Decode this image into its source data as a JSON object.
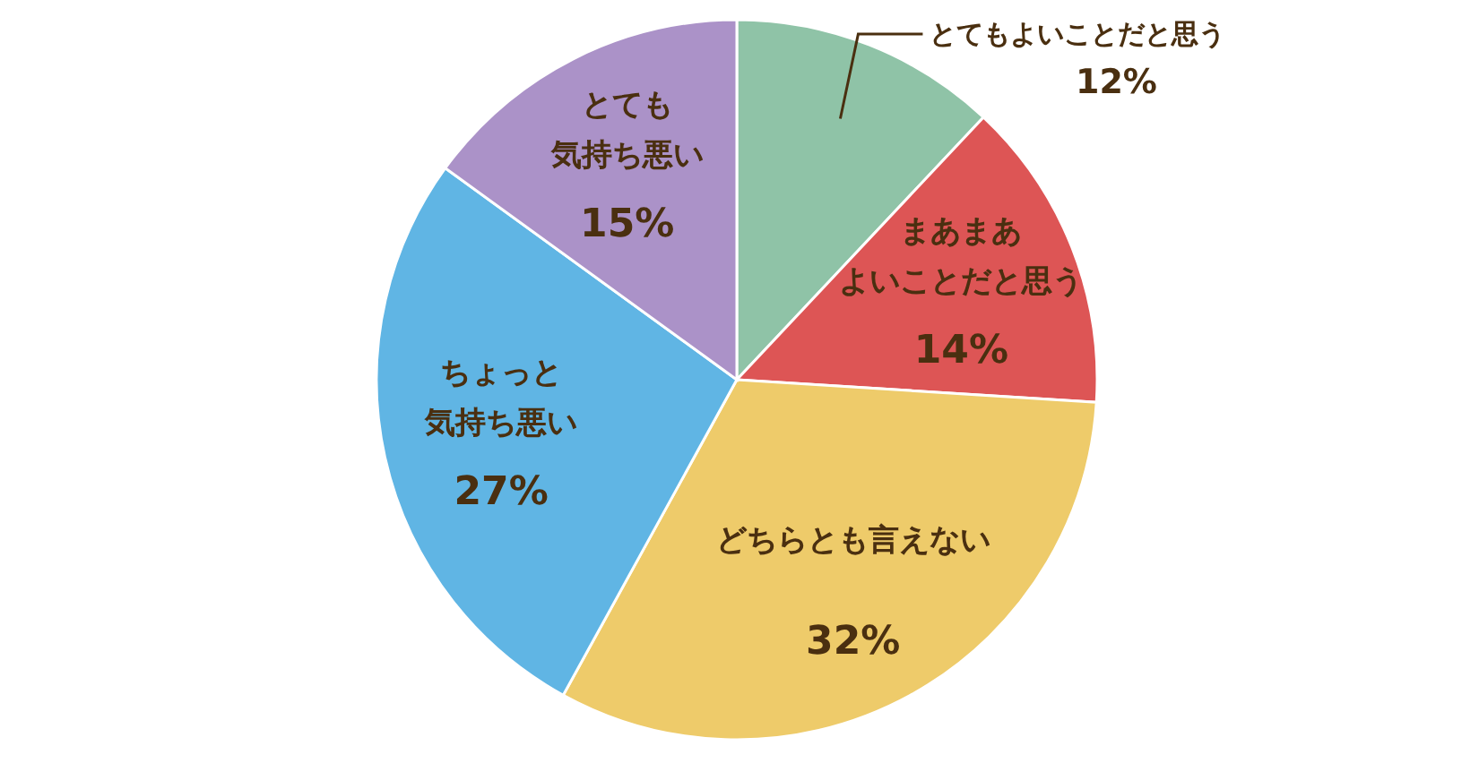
{
  "chart_data": {
    "type": "pie",
    "categories": [
      "とてもよいことだと思う",
      "まあまあよいことだと思う",
      "どちらとも言えない",
      "ちょっと気持ち悪い",
      "とても気持ち悪い"
    ],
    "values": [
      12,
      14,
      32,
      27,
      15
    ],
    "colors": [
      "#8fc3a7",
      "#dd5555",
      "#eecb6a",
      "#60b5e4",
      "#ab92c8"
    ],
    "value_labels": [
      "12%",
      "14%",
      "32%",
      "27%",
      "15%"
    ]
  }
}
